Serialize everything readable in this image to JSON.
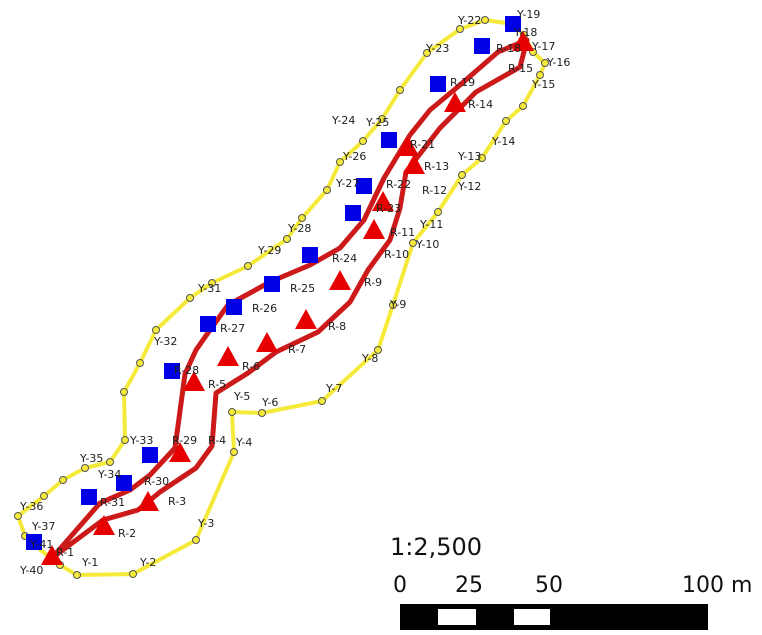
{
  "colors": {
    "outer_boundary": "#f5ea3a",
    "inner_boundary": "#cc1a1a",
    "r_marker": "#e60000",
    "blue_marker": "#0000e6",
    "label": "#222222"
  },
  "scale": {
    "ratio": "1:2,500",
    "ticks": [
      "0",
      "25",
      "50",
      "100 m"
    ]
  },
  "icons": {
    "y_point": "small-circle",
    "r_point": "red-triangle",
    "blue_point": "blue-square"
  },
  "y_labels": [
    "Y-1",
    "Y-2",
    "Y-3",
    "Y-4",
    "Y-5",
    "Y-6",
    "Y-7",
    "Y-8",
    "Y-9",
    "Y-10",
    "Y-11",
    "Y-12",
    "Y-13",
    "Y-14",
    "Y-15",
    "Y-16",
    "Y-17",
    "Y-18",
    "Y-19",
    "Y-22",
    "Y-23",
    "Y-24",
    "Y-25",
    "Y-26",
    "Y-27",
    "Y-28",
    "Y-29",
    "Y-31",
    "Y-32",
    "Y-33",
    "Y-34",
    "Y-35",
    "Y-36",
    "Y-37",
    "Y-40",
    "Y-41"
  ],
  "r_labels": [
    "R-1",
    "R-2",
    "R-3",
    "R-4",
    "R-5",
    "R-6",
    "R-7",
    "R-8",
    "R-9",
    "R-10",
    "R-11",
    "R-12",
    "R-13",
    "R-14",
    "R-15",
    "R-18",
    "R-19",
    "R-21",
    "R-22",
    "R-23",
    "R-24",
    "R-25",
    "R-26",
    "R-27",
    "R-28",
    "R-29",
    "R-30",
    "R-31"
  ]
}
